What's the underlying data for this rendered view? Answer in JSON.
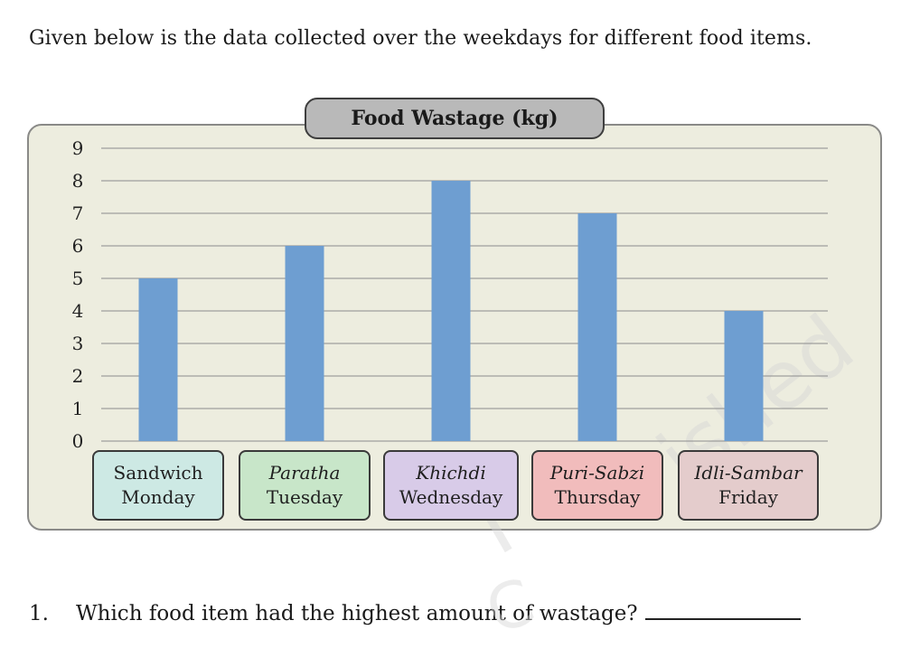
{
  "intro_text": "Given below is the data collected over the weekdays for different food items.",
  "chart_data": {
    "type": "bar",
    "title": "Food Wastage (kg)",
    "categories": [
      {
        "food": "Sandwich",
        "day": "Monday",
        "color": "#cde9e4",
        "italic": false
      },
      {
        "food": "Paratha",
        "day": "Tuesday",
        "color": "#c8e6c9",
        "italic": true
      },
      {
        "food": "Khichdi",
        "day": "Wednesday",
        "color": "#d8cbe8",
        "italic": true
      },
      {
        "food": "Puri-Sabzi",
        "day": "Thursday",
        "color": "#f1bcbc",
        "italic": true
      },
      {
        "food": "Idli-Sambar",
        "day": "Friday",
        "color": "#e4cccc",
        "italic": true
      }
    ],
    "values": [
      5,
      6,
      8,
      7,
      4
    ],
    "ylim": [
      0,
      9
    ],
    "yticks": [
      "0",
      "1",
      "2",
      "3",
      "4",
      "5",
      "6",
      "7",
      "8",
      "9"
    ],
    "bar_color": "#6e9ed1",
    "grid": true
  },
  "question": {
    "number": "1.",
    "text": "Which food item had the highest amount of wastage?"
  },
  "watermarks": [
    "ished",
    "T",
    "C"
  ]
}
